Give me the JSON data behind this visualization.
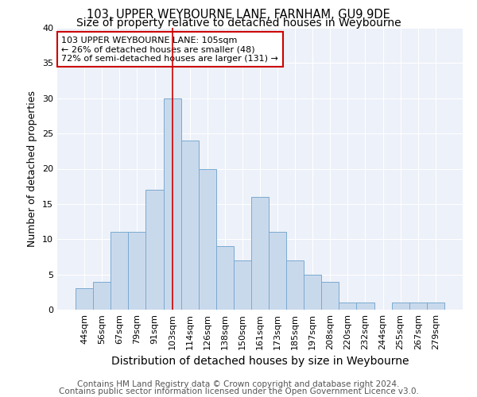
{
  "title1": "103, UPPER WEYBOURNE LANE, FARNHAM, GU9 9DE",
  "title2": "Size of property relative to detached houses in Weybourne",
  "xlabel": "Distribution of detached houses by size in Weybourne",
  "ylabel": "Number of detached properties",
  "categories": [
    "44sqm",
    "56sqm",
    "67sqm",
    "79sqm",
    "91sqm",
    "103sqm",
    "114sqm",
    "126sqm",
    "138sqm",
    "150sqm",
    "161sqm",
    "173sqm",
    "185sqm",
    "197sqm",
    "208sqm",
    "220sqm",
    "232sqm",
    "244sqm",
    "255sqm",
    "267sqm",
    "279sqm"
  ],
  "values": [
    3,
    4,
    11,
    11,
    17,
    30,
    24,
    20,
    9,
    7,
    16,
    11,
    7,
    5,
    4,
    1,
    1,
    0,
    1,
    1,
    1
  ],
  "bar_color": "#c9d9ec",
  "bar_edge_color": "#7aaad0",
  "vline_x_index": 5,
  "vline_color": "#cc0000",
  "annotation_text": "103 UPPER WEYBOURNE LANE: 105sqm\n← 26% of detached houses are smaller (48)\n72% of semi-detached houses are larger (131) →",
  "annotation_box_color": "white",
  "annotation_box_edge_color": "#cc0000",
  "footnote1": "Contains HM Land Registry data © Crown copyright and database right 2024.",
  "footnote2": "Contains public sector information licensed under the Open Government Licence v3.0.",
  "ylim": [
    0,
    40
  ],
  "yticks": [
    0,
    5,
    10,
    15,
    20,
    25,
    30,
    35,
    40
  ],
  "background_color": "#edf1f9",
  "title1_fontsize": 10.5,
  "title2_fontsize": 10,
  "xlabel_fontsize": 10,
  "ylabel_fontsize": 9,
  "footnote_fontsize": 7.5,
  "tick_fontsize": 8,
  "annotation_fontsize": 8
}
